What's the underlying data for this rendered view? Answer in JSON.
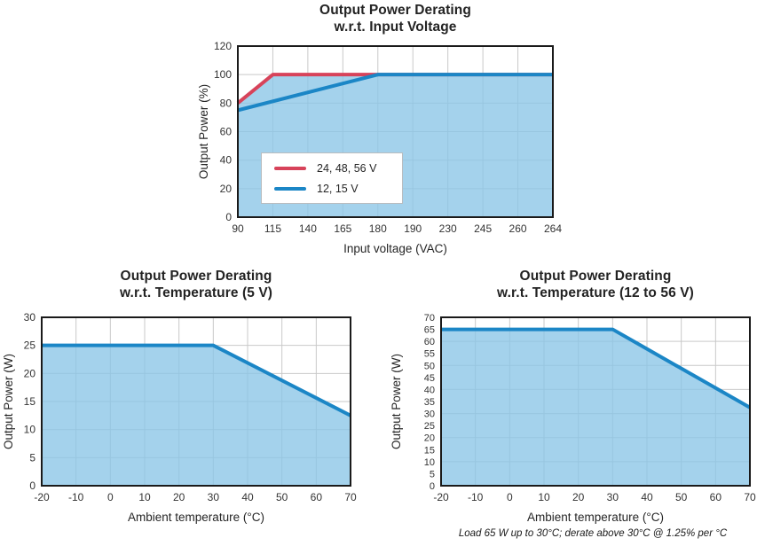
{
  "page": {
    "background": "#ffffff"
  },
  "colors": {
    "red_line": "#d7435a",
    "blue_line": "#1b86c6",
    "area_fill_rgba": "rgba(139,197,231,0.78)",
    "gridline": "#c9c9c9",
    "axis_frame": "#1a1a1a",
    "tick_text": "#333333"
  },
  "footnote": "Load 65 W up to 30°C; derate above 30°C @ 1.25% per °C",
  "chart_data": [
    {
      "type": "area",
      "title_line1": "Output Power Derating",
      "title_line2": "w.r.t. Input Voltage",
      "xlabel": "Input voltage (VAC)",
      "ylabel": "Output Power (%)",
      "x_ticks": [
        "90",
        "115",
        "140",
        "165",
        "180",
        "190",
        "230",
        "245",
        "260",
        "264"
      ],
      "x_ticks_evenly_spaced": true,
      "y_ticks": [
        0,
        20,
        40,
        60,
        80,
        100,
        120
      ],
      "ylim": [
        0,
        120
      ],
      "grid_y": [
        20,
        40,
        60,
        80,
        100
      ],
      "grid": true,
      "legend_position": "inside lower-left",
      "series": [
        {
          "name": "24, 48, 56 V",
          "color": "#d7435a",
          "fill": true,
          "points": [
            [
              "90",
              80
            ],
            [
              "115",
              100
            ],
            [
              "264",
              100
            ]
          ]
        },
        {
          "name": "12, 15 V",
          "color": "#1b86c6",
          "fill": false,
          "points": [
            [
              "90",
              75
            ],
            [
              "180",
              100
            ],
            [
              "264",
              100
            ]
          ]
        }
      ]
    },
    {
      "type": "area",
      "title_line1": "Output Power Derating",
      "title_line2": "w.r.t. Temperature (5 V)",
      "xlabel": "Ambient temperature (°C)",
      "ylabel": "Output Power (W)",
      "x_ticks": [
        "-20",
        "-10",
        "0",
        "10",
        "20",
        "30",
        "40",
        "50",
        "60",
        "70"
      ],
      "y_ticks": [
        0,
        5,
        10,
        15,
        20,
        25,
        30
      ],
      "ylim": [
        0,
        30
      ],
      "grid_y": [
        5,
        10,
        15,
        20,
        25
      ],
      "grid": true,
      "series": [
        {
          "color": "#1b86c6",
          "fill": true,
          "points": [
            [
              "-20",
              25
            ],
            [
              "30",
              25
            ],
            [
              "70",
              12.5
            ]
          ]
        }
      ]
    },
    {
      "type": "area",
      "title_line1": "Output Power Derating",
      "title_line2": "w.r.t. Temperature (12 to 56 V)",
      "xlabel": "Ambient temperature (°C)",
      "ylabel": "Output Power (W)",
      "x_ticks": [
        "-20",
        "-10",
        "0",
        "10",
        "20",
        "30",
        "40",
        "50",
        "60",
        "70"
      ],
      "y_ticks": [
        0,
        5,
        10,
        15,
        20,
        25,
        30,
        35,
        40,
        45,
        50,
        55,
        60,
        65,
        70
      ],
      "ylim": [
        0,
        70
      ],
      "grid_y": [
        10,
        20,
        30,
        40,
        50,
        60
      ],
      "grid": true,
      "series": [
        {
          "color": "#1b86c6",
          "fill": true,
          "points": [
            [
              "-20",
              65
            ],
            [
              "30",
              65
            ],
            [
              "70",
              32.5
            ]
          ]
        }
      ]
    }
  ]
}
